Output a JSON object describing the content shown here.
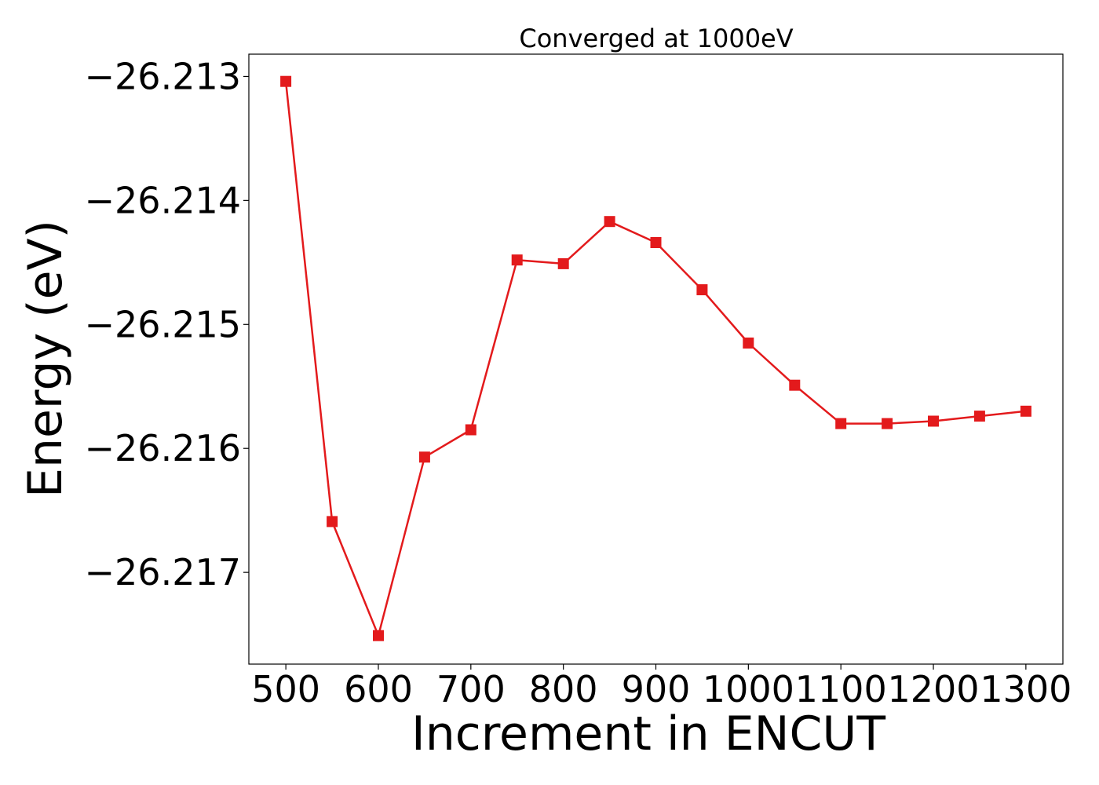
{
  "chart_data": {
    "type": "line",
    "title": "Converged at 1000eV",
    "xlabel": "Increment in ENCUT",
    "ylabel": "Energy (eV)",
    "xlim": [
      460,
      1340
    ],
    "ylim": [
      -26.21774,
      -26.21282
    ],
    "grid": false,
    "legend": "none",
    "x_ticks": [
      500,
      600,
      700,
      800,
      900,
      1000,
      1100,
      1200,
      1300
    ],
    "x_tick_labels": [
      "500",
      "600",
      "700",
      "800",
      "900",
      "1000",
      "1100",
      "1200",
      "1300"
    ],
    "y_ticks": [
      -26.213,
      -26.214,
      -26.215,
      -26.216,
      -26.217
    ],
    "y_tick_labels": [
      "−26.213",
      "−26.214",
      "−26.215",
      "−26.216",
      "−26.217"
    ],
    "series": [
      {
        "color": "#e31a1c",
        "marker": "square",
        "x": [
          500,
          550,
          600,
          650,
          700,
          750,
          800,
          850,
          900,
          950,
          1000,
          1050,
          1100,
          1150,
          1200,
          1250,
          1300
        ],
        "y": [
          -26.21304,
          -26.21659,
          -26.21751,
          -26.21607,
          -26.21585,
          -26.21448,
          -26.21451,
          -26.21417,
          -26.21434,
          -26.21472,
          -26.21515,
          -26.21549,
          -26.2158,
          -26.2158,
          -26.21578,
          -26.21574,
          -26.2157
        ]
      }
    ]
  }
}
